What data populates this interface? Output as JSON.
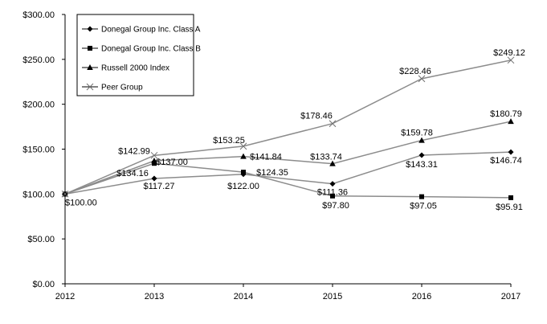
{
  "chart_data": {
    "type": "line",
    "x": [
      "2012",
      "2013",
      "2014",
      "2015",
      "2016",
      "2017"
    ],
    "ylim": [
      0,
      300
    ],
    "yticks": [
      0,
      50,
      100,
      150,
      200,
      250,
      300
    ],
    "ytick_labels": [
      "$0.00",
      "$50.00",
      "$100.00",
      "$150.00",
      "$200.00",
      "$250.00",
      "$300.00"
    ],
    "legend_position": "top-left",
    "grid": false,
    "line_color": "#8c8c8c",
    "marker_color": "#000000",
    "series": [
      {
        "name": "Donegal Group Inc. Class A",
        "marker": "diamond",
        "values": [
          100.0,
          117.27,
          122.0,
          111.36,
          143.31,
          146.74
        ],
        "labels": [
          "$100.00",
          "$117.27",
          "$122.00",
          "$111.36",
          "$143.31",
          "$146.74"
        ]
      },
      {
        "name": "Donegal Group Inc. Class B",
        "marker": "square",
        "values": [
          100.0,
          134.16,
          124.35,
          97.8,
          97.05,
          95.91
        ],
        "labels": [
          "",
          "$134.16",
          "$124.35",
          "$97.80",
          "$97.05",
          "$95.91"
        ]
      },
      {
        "name": "Russell 2000 Index",
        "marker": "triangle",
        "values": [
          100.0,
          137.0,
          141.84,
          133.74,
          159.78,
          180.79
        ],
        "labels": [
          "",
          "$137.00",
          "$141.84",
          "$133.74",
          "$159.78",
          "$180.79"
        ]
      },
      {
        "name": "Peer Group",
        "marker": "x",
        "values": [
          100.0,
          142.99,
          153.25,
          178.46,
          228.46,
          249.12
        ],
        "labels": [
          "",
          "$142.99",
          "$153.25",
          "$178.46",
          "$228.46",
          "$249.12"
        ]
      }
    ]
  }
}
